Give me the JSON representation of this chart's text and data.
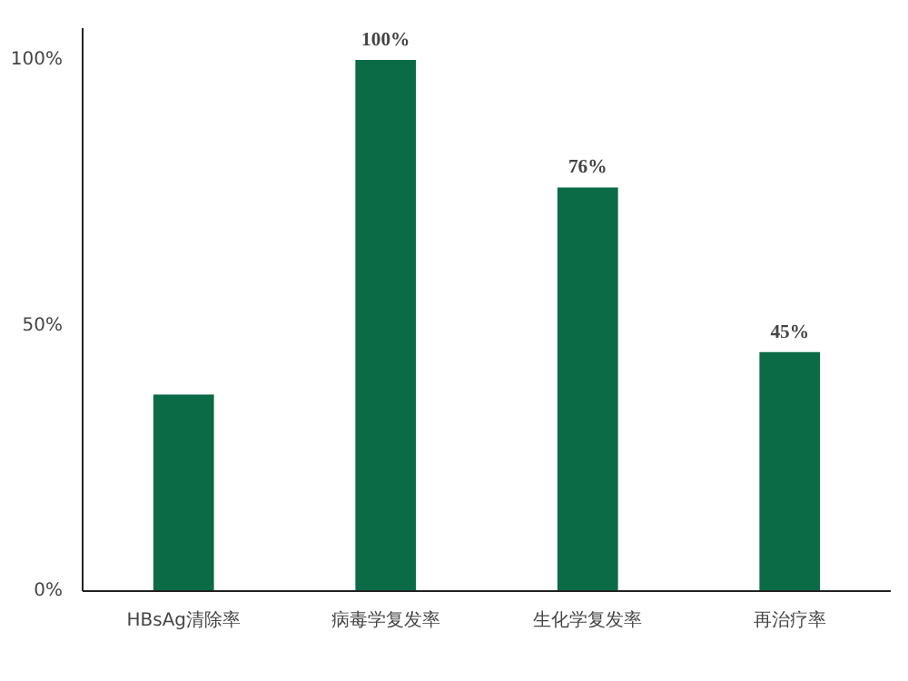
{
  "chart_data": {
    "type": "bar",
    "categories": [
      "HBsAg清除率",
      "病毒学复发率",
      "生化学复发率",
      "再治疗率"
    ],
    "values": [
      37,
      100,
      76,
      45
    ],
    "value_labels": [
      null,
      "100%",
      "76%",
      "45%"
    ],
    "color": "#0b6b47",
    "ylim": [
      0,
      100
    ],
    "yticks": [
      {
        "value": 0,
        "label": "0%"
      },
      {
        "value": 50,
        "label": "50%"
      },
      {
        "value": 100,
        "label": "100%"
      }
    ],
    "grid": false
  }
}
